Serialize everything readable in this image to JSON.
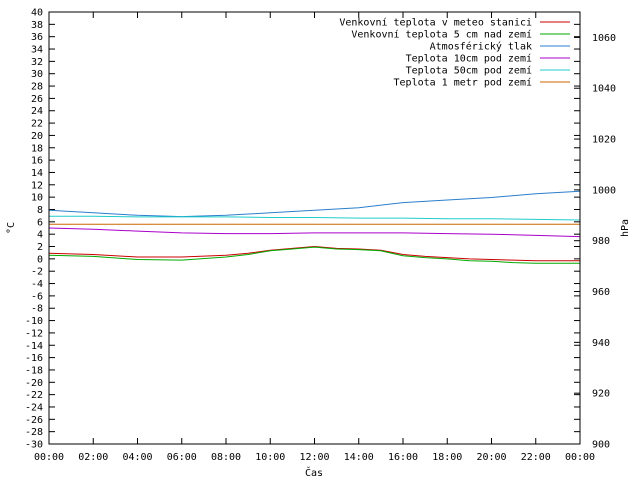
{
  "chart_data": {
    "type": "line",
    "title": "",
    "xlabel": "Čas",
    "ylabel": "°C",
    "y2label": "hPa",
    "x_ticks": [
      "00:00",
      "02:00",
      "04:00",
      "06:00",
      "08:00",
      "10:00",
      "12:00",
      "14:00",
      "16:00",
      "18:00",
      "20:00",
      "22:00",
      "00:00"
    ],
    "xlim": [
      0,
      24
    ],
    "ylim": [
      -30,
      40
    ],
    "y_ticks": [
      40,
      38,
      36,
      34,
      32,
      30,
      28,
      26,
      24,
      22,
      20,
      18,
      16,
      14,
      12,
      10,
      8,
      6,
      4,
      2,
      0,
      -2,
      -4,
      -6,
      -8,
      -10,
      -12,
      -14,
      -16,
      -18,
      -20,
      -22,
      -24,
      -26,
      -28,
      -30
    ],
    "y2lim": [
      900,
      1070
    ],
    "y2_ticks": [
      1060,
      1040,
      1020,
      1000,
      980,
      960,
      940,
      920,
      900
    ],
    "grid": false,
    "legend_position": "top-right",
    "x_unit": "hours",
    "series": [
      {
        "name": "Venkovní teplota v meteo stanici",
        "axis": "left",
        "color": "#cc0000",
        "x": [
          0,
          2,
          4,
          6,
          8,
          9,
          10,
          11,
          12,
          13,
          14,
          15,
          16,
          17,
          18,
          19,
          20,
          21,
          22,
          23,
          24
        ],
        "y": [
          0.9,
          0.7,
          0.3,
          0.3,
          0.6,
          0.9,
          1.4,
          1.7,
          2.0,
          1.7,
          1.6,
          1.4,
          0.7,
          0.4,
          0.2,
          0.0,
          -0.1,
          -0.2,
          -0.3,
          -0.3,
          -0.3
        ]
      },
      {
        "name": "Venkovní teplota 5 cm nad zemí",
        "axis": "left",
        "color": "#00aa00",
        "x": [
          0,
          2,
          4,
          6,
          8,
          9,
          10,
          11,
          12,
          13,
          14,
          15,
          16,
          17,
          18,
          19,
          20,
          21,
          22,
          23,
          24
        ],
        "y": [
          0.6,
          0.4,
          -0.1,
          -0.2,
          0.3,
          0.7,
          1.3,
          1.6,
          1.9,
          1.6,
          1.5,
          1.3,
          0.5,
          0.2,
          0.0,
          -0.3,
          -0.4,
          -0.6,
          -0.7,
          -0.7,
          -0.7
        ]
      },
      {
        "name": "Atmosférický tlak",
        "axis": "right",
        "color": "#2a7fcc",
        "x": [
          0,
          2,
          4,
          6,
          8,
          10,
          12,
          14,
          16,
          18,
          20,
          22,
          24
        ],
        "y": [
          992,
          991,
          990,
          989.5,
          990,
          991,
          992,
          993,
          995,
          996,
          997,
          998.5,
          999.5
        ]
      },
      {
        "name": "Teplota 10cm pod zemí",
        "axis": "left",
        "color": "#aa00cc",
        "x": [
          0,
          2,
          4,
          6,
          8,
          10,
          12,
          14,
          16,
          18,
          20,
          22,
          24
        ],
        "y": [
          5.0,
          4.8,
          4.5,
          4.2,
          4.1,
          4.1,
          4.2,
          4.2,
          4.2,
          4.1,
          4.0,
          3.8,
          3.6
        ]
      },
      {
        "name": "Teplota 50cm pod zemí",
        "axis": "left",
        "color": "#20cccc",
        "x": [
          0,
          2,
          4,
          6,
          8,
          10,
          12,
          14,
          16,
          18,
          20,
          22,
          24
        ],
        "y": [
          6.9,
          6.9,
          6.8,
          6.8,
          6.8,
          6.7,
          6.7,
          6.6,
          6.6,
          6.5,
          6.5,
          6.4,
          6.3
        ]
      },
      {
        "name": "Teplota 1 metr pod zemí",
        "axis": "left",
        "color": "#cc6600",
        "x": [
          0,
          2,
          4,
          6,
          8,
          10,
          12,
          14,
          16,
          18,
          20,
          22,
          24
        ],
        "y": [
          5.6,
          5.6,
          5.6,
          5.6,
          5.6,
          5.6,
          5.6,
          5.6,
          5.6,
          5.6,
          5.6,
          5.6,
          5.6
        ]
      }
    ]
  }
}
